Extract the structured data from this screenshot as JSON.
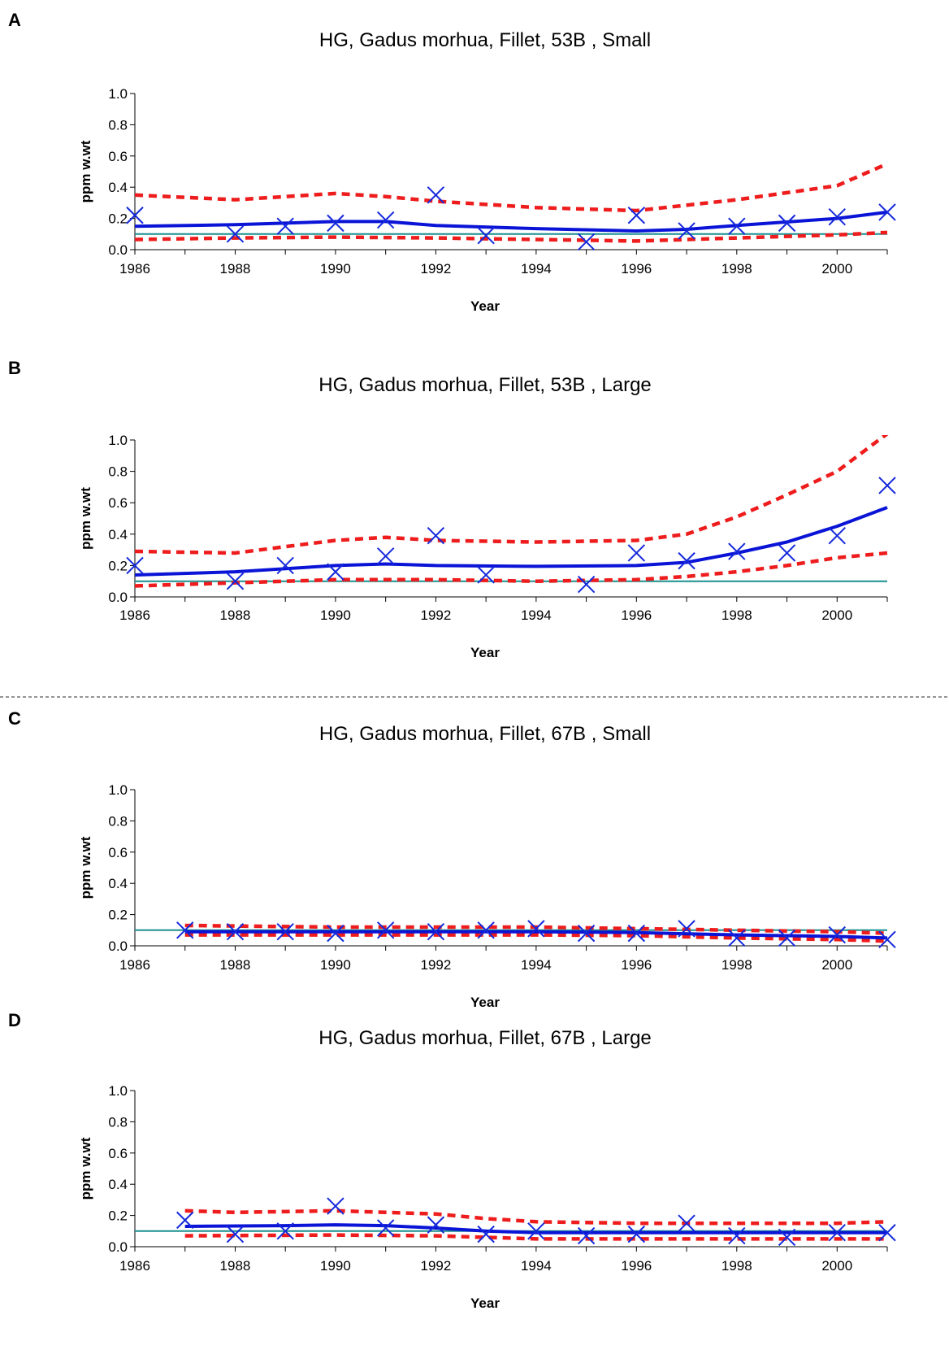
{
  "chart_data": [
    {
      "panel": "A",
      "type": "line",
      "title": "HG, Gadus morhua, Fillet, 53B , Small",
      "xlabel": "Year",
      "ylabel": "ppm w.wt",
      "xlim": [
        1986,
        2001
      ],
      "ylim": [
        0,
        1.0
      ],
      "xticks": [
        "1986",
        "1988",
        "1990",
        "1992",
        "1994",
        "1996",
        "1998",
        "2000"
      ],
      "yticks": [
        "0.0",
        "0.2",
        "0.4",
        "0.6",
        "0.8",
        "1.0"
      ],
      "reference_line": 0.1,
      "observed": [
        [
          1986,
          0.22
        ],
        [
          1988,
          0.1
        ],
        [
          1989,
          0.15
        ],
        [
          1990,
          0.17
        ],
        [
          1991,
          0.19
        ],
        [
          1992,
          0.35
        ],
        [
          1993,
          0.09
        ],
        [
          1995,
          0.05
        ],
        [
          1996,
          0.22
        ],
        [
          1997,
          0.12
        ],
        [
          1998,
          0.15
        ],
        [
          1999,
          0.17
        ],
        [
          2000,
          0.21
        ],
        [
          2001,
          0.24
        ]
      ],
      "trend": [
        [
          1986,
          0.15
        ],
        [
          1988,
          0.16
        ],
        [
          1990,
          0.18
        ],
        [
          1991,
          0.18
        ],
        [
          1992,
          0.155
        ],
        [
          1994,
          0.135
        ],
        [
          1996,
          0.12
        ],
        [
          1997,
          0.13
        ],
        [
          1998,
          0.155
        ],
        [
          2000,
          0.2
        ],
        [
          2001,
          0.24
        ]
      ],
      "upper": [
        [
          1986,
          0.35
        ],
        [
          1988,
          0.32
        ],
        [
          1990,
          0.36
        ],
        [
          1991,
          0.34
        ],
        [
          1992,
          0.31
        ],
        [
          1994,
          0.27
        ],
        [
          1996,
          0.25
        ],
        [
          1998,
          0.32
        ],
        [
          2000,
          0.41
        ],
        [
          2001,
          0.55
        ]
      ],
      "lower": [
        [
          1986,
          0.065
        ],
        [
          1988,
          0.075
        ],
        [
          1990,
          0.08
        ],
        [
          1992,
          0.075
        ],
        [
          1994,
          0.065
        ],
        [
          1996,
          0.055
        ],
        [
          1998,
          0.075
        ],
        [
          2000,
          0.095
        ],
        [
          2001,
          0.11
        ]
      ]
    },
    {
      "panel": "B",
      "type": "line",
      "title": "HG, Gadus morhua, Fillet, 53B , Large",
      "xlabel": "Year",
      "ylabel": "ppm w.wt",
      "xlim": [
        1986,
        2001
      ],
      "ylim": [
        0,
        1.0
      ],
      "xticks": [
        "1986",
        "1988",
        "1990",
        "1992",
        "1994",
        "1996",
        "1998",
        "2000"
      ],
      "yticks": [
        "0.0",
        "0.2",
        "0.4",
        "0.6",
        "0.8",
        "1.0"
      ],
      "reference_line": 0.1,
      "observed": [
        [
          1986,
          0.2
        ],
        [
          1988,
          0.1
        ],
        [
          1989,
          0.2
        ],
        [
          1990,
          0.16
        ],
        [
          1991,
          0.26
        ],
        [
          1992,
          0.39
        ],
        [
          1993,
          0.14
        ],
        [
          1995,
          0.08
        ],
        [
          1996,
          0.28
        ],
        [
          1997,
          0.23
        ],
        [
          1998,
          0.29
        ],
        [
          1999,
          0.28
        ],
        [
          2000,
          0.39
        ],
        [
          2001,
          0.71
        ]
      ],
      "trend": [
        [
          1986,
          0.14
        ],
        [
          1988,
          0.16
        ],
        [
          1990,
          0.2
        ],
        [
          1991,
          0.21
        ],
        [
          1992,
          0.2
        ],
        [
          1994,
          0.195
        ],
        [
          1996,
          0.2
        ],
        [
          1997,
          0.22
        ],
        [
          1998,
          0.28
        ],
        [
          1999,
          0.35
        ],
        [
          2000,
          0.45
        ],
        [
          2001,
          0.57
        ]
      ],
      "upper": [
        [
          1986,
          0.29
        ],
        [
          1988,
          0.28
        ],
        [
          1989,
          0.32
        ],
        [
          1990,
          0.36
        ],
        [
          1991,
          0.38
        ],
        [
          1992,
          0.36
        ],
        [
          1994,
          0.35
        ],
        [
          1996,
          0.36
        ],
        [
          1997,
          0.4
        ],
        [
          1998,
          0.51
        ],
        [
          1999,
          0.65
        ],
        [
          2000,
          0.8
        ],
        [
          2001,
          1.04
        ]
      ],
      "lower": [
        [
          1986,
          0.07
        ],
        [
          1988,
          0.09
        ],
        [
          1990,
          0.11
        ],
        [
          1992,
          0.11
        ],
        [
          1994,
          0.1
        ],
        [
          1996,
          0.11
        ],
        [
          1997,
          0.13
        ],
        [
          1998,
          0.16
        ],
        [
          1999,
          0.2
        ],
        [
          2000,
          0.25
        ],
        [
          2001,
          0.28
        ]
      ]
    },
    {
      "panel": "C",
      "type": "line",
      "title": "HG, Gadus morhua, Fillet, 67B , Small",
      "xlabel": "Year",
      "ylabel": "ppm w.wt",
      "xlim": [
        1986,
        2001
      ],
      "ylim": [
        0,
        1.0
      ],
      "xticks": [
        "1986",
        "1988",
        "1990",
        "1992",
        "1994",
        "1996",
        "1998",
        "2000"
      ],
      "yticks": [
        "0.0",
        "0.2",
        "0.4",
        "0.6",
        "0.8",
        "1.0"
      ],
      "reference_line": 0.1,
      "observed": [
        [
          1987,
          0.1
        ],
        [
          1988,
          0.09
        ],
        [
          1989,
          0.09
        ],
        [
          1990,
          0.08
        ],
        [
          1991,
          0.1
        ],
        [
          1992,
          0.09
        ],
        [
          1993,
          0.1
        ],
        [
          1994,
          0.11
        ],
        [
          1995,
          0.08
        ],
        [
          1996,
          0.08
        ],
        [
          1997,
          0.11
        ],
        [
          1998,
          0.05
        ],
        [
          1999,
          0.05
        ],
        [
          2000,
          0.07
        ],
        [
          2001,
          0.04
        ]
      ],
      "trend": [
        [
          1987,
          0.09
        ],
        [
          1990,
          0.09
        ],
        [
          1994,
          0.09
        ],
        [
          1996,
          0.085
        ],
        [
          1998,
          0.07
        ],
        [
          2000,
          0.06
        ],
        [
          2001,
          0.05
        ]
      ],
      "upper": [
        [
          1987,
          0.13
        ],
        [
          1990,
          0.12
        ],
        [
          1994,
          0.12
        ],
        [
          1996,
          0.11
        ],
        [
          1998,
          0.1
        ],
        [
          2000,
          0.09
        ],
        [
          2001,
          0.08
        ]
      ],
      "lower": [
        [
          1987,
          0.07
        ],
        [
          1990,
          0.07
        ],
        [
          1994,
          0.07
        ],
        [
          1996,
          0.065
        ],
        [
          1998,
          0.05
        ],
        [
          2000,
          0.04
        ],
        [
          2001,
          0.03
        ]
      ]
    },
    {
      "panel": "D",
      "type": "line",
      "title": "HG, Gadus morhua, Fillet, 67B , Large",
      "xlabel": "Year",
      "ylabel": "ppm w.wt",
      "xlim": [
        1986,
        2001
      ],
      "ylim": [
        0,
        1.0
      ],
      "xticks": [
        "1986",
        "1988",
        "1990",
        "1992",
        "1994",
        "1996",
        "1998",
        "2000"
      ],
      "yticks": [
        "0.0",
        "0.2",
        "0.4",
        "0.6",
        "0.8",
        "1.0"
      ],
      "reference_line": 0.1,
      "observed": [
        [
          1987,
          0.17
        ],
        [
          1988,
          0.08
        ],
        [
          1989,
          0.1
        ],
        [
          1990,
          0.26
        ],
        [
          1991,
          0.12
        ],
        [
          1992,
          0.14
        ],
        [
          1993,
          0.08
        ],
        [
          1994,
          0.1
        ],
        [
          1995,
          0.07
        ],
        [
          1996,
          0.08
        ],
        [
          1997,
          0.15
        ],
        [
          1998,
          0.07
        ],
        [
          1999,
          0.06
        ],
        [
          2000,
          0.09
        ],
        [
          2001,
          0.09
        ]
      ],
      "trend": [
        [
          1987,
          0.13
        ],
        [
          1989,
          0.135
        ],
        [
          1990,
          0.14
        ],
        [
          1991,
          0.135
        ],
        [
          1992,
          0.12
        ],
        [
          1993,
          0.1
        ],
        [
          1994,
          0.09
        ],
        [
          1996,
          0.09
        ],
        [
          1998,
          0.09
        ],
        [
          2000,
          0.09
        ],
        [
          2001,
          0.09
        ]
      ],
      "upper": [
        [
          1987,
          0.23
        ],
        [
          1988,
          0.22
        ],
        [
          1990,
          0.23
        ],
        [
          1991,
          0.22
        ],
        [
          1992,
          0.21
        ],
        [
          1993,
          0.18
        ],
        [
          1994,
          0.16
        ],
        [
          1996,
          0.15
        ],
        [
          1998,
          0.15
        ],
        [
          2000,
          0.15
        ],
        [
          2001,
          0.16
        ]
      ],
      "lower": [
        [
          1987,
          0.07
        ],
        [
          1990,
          0.075
        ],
        [
          1992,
          0.07
        ],
        [
          1994,
          0.05
        ],
        [
          1996,
          0.05
        ],
        [
          1998,
          0.05
        ],
        [
          2000,
          0.05
        ],
        [
          2001,
          0.05
        ]
      ]
    }
  ],
  "colors": {
    "trend": "#0a14d6",
    "observed": "#1428dc",
    "interval": "#ee1c1c",
    "reference": "#1a8f8f",
    "axis": "#000000",
    "divider": "#555555"
  }
}
